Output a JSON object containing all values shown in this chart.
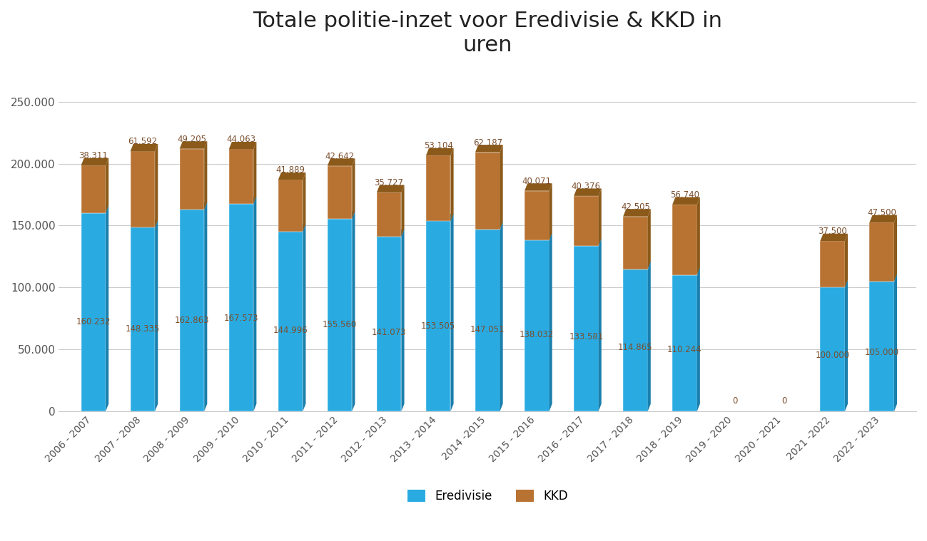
{
  "title": "Totale politie-inzet voor Eredivisie & KKD in\nuren",
  "categories": [
    "2006 - 2007",
    "2007 - 2008",
    "2008 - 2009",
    "2009 - 2010",
    "2010 - 2011",
    "2011 - 2012",
    "2012 - 2013",
    "2013 - 2014",
    "2014 -2015",
    "2015 - 2016",
    "2016 - 2017",
    "2017 - 2018",
    "2018 - 2019",
    "2019 - 2020",
    "2020 - 2021",
    "2021 -2022",
    "2022 - 2023"
  ],
  "eredivisie": [
    160232,
    148335,
    162863,
    167573,
    144996,
    155560,
    141073,
    153505,
    147051,
    138032,
    133581,
    114865,
    110244,
    0,
    0,
    100000,
    105000
  ],
  "kkd": [
    38311,
    61592,
    49205,
    44063,
    41889,
    42642,
    35727,
    53104,
    62187,
    40071,
    40376,
    42505,
    56740,
    0,
    0,
    37500,
    47500
  ],
  "eredivisie_labels": [
    "160.232",
    "148.335",
    "162.863",
    "167.573",
    "144.996",
    "155.560",
    "141.073",
    "153.505",
    "147.051",
    "138.032",
    "133.581",
    "114.865",
    "110.244",
    "",
    "",
    "100.000",
    "105.000"
  ],
  "kkd_labels": [
    "38.311",
    "61.592",
    "49.205",
    "44.063",
    "41.889",
    "42.642",
    "35.727",
    "53.104",
    "62.187",
    "40.071",
    "40.376",
    "42.505",
    "56.740",
    "0",
    "0",
    "37.500",
    "47.500"
  ],
  "eredivisie_color": "#29ABE2",
  "eredivisie_dark": "#1A7FAD",
  "kkd_color": "#B87333",
  "kkd_dark": "#8B5A1A",
  "ylim": [
    0,
    275000
  ],
  "yticks": [
    0,
    50000,
    100000,
    150000,
    200000,
    250000
  ],
  "ytick_labels": [
    "0",
    "50.000",
    "100.000",
    "150.000",
    "200.000",
    "250.000"
  ],
  "legend_labels": [
    "Eredivisie",
    "KKD"
  ],
  "background_color": "#FFFFFF",
  "plot_bg_color": "#F5F5F5",
  "grid_color": "#CCCCCC",
  "title_fontsize": 22,
  "label_fontsize": 8.5,
  "tick_fontsize": 11,
  "label_color": "#7B4F2E"
}
